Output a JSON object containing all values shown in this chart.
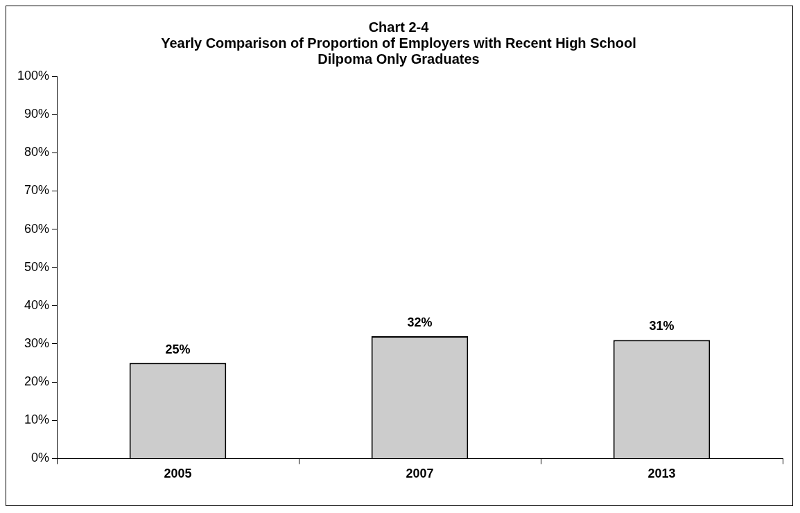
{
  "chart_data": {
    "type": "bar",
    "title": "Chart 2-4",
    "subtitle": "Yearly Comparison of Proportion of Employers with Recent High School Dilpoma Only Graduates",
    "categories": [
      "2005",
      "2007",
      "2013"
    ],
    "values": [
      25,
      32,
      31
    ],
    "value_labels": [
      "25%",
      "32%",
      "31%"
    ],
    "color": "#cccccc",
    "ylim": [
      0,
      100
    ],
    "yticks": [
      {
        "value": 0,
        "label": "0%"
      },
      {
        "value": 10,
        "label": "10%"
      },
      {
        "value": 20,
        "label": "20%"
      },
      {
        "value": 30,
        "label": "30%"
      },
      {
        "value": 40,
        "label": "40%"
      },
      {
        "value": 50,
        "label": "50%"
      },
      {
        "value": 60,
        "label": "60%"
      },
      {
        "value": 70,
        "label": "70%"
      },
      {
        "value": 80,
        "label": "80%"
      },
      {
        "value": 90,
        "label": "90%"
      },
      {
        "value": 100,
        "label": "100%"
      }
    ],
    "grid": false,
    "legend": false
  }
}
